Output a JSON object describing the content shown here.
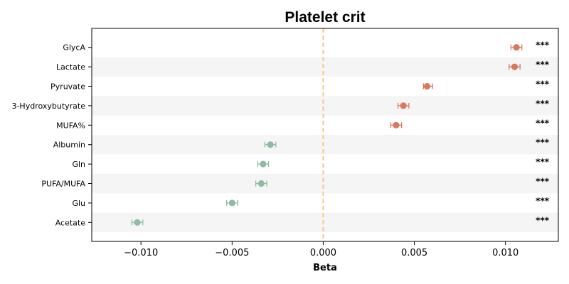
{
  "chart_data": {
    "type": "scatter",
    "title": "Platelet crit",
    "xlabel": "Beta",
    "ylabel": "",
    "xlim": [
      -0.0127,
      0.0129
    ],
    "xticks": [
      -0.01,
      -0.005,
      0.0,
      0.005,
      0.01
    ],
    "xtick_labels": [
      "−0.010",
      "−0.005",
      "0.000",
      "0.005",
      "0.010"
    ],
    "reference_line": 0.0,
    "colors": {
      "positive": "#d9785f",
      "negative": "#8fbba3",
      "reference": "#f5c27a",
      "stripe": "#f5f5f5"
    },
    "rows": [
      {
        "label": "GlycA",
        "beta": 0.0106,
        "lower": 0.0103,
        "upper": 0.0109,
        "sig": "***"
      },
      {
        "label": "Lactate",
        "beta": 0.0105,
        "lower": 0.0102,
        "upper": 0.0108,
        "sig": "***"
      },
      {
        "label": "Pyruvate",
        "beta": 0.0057,
        "lower": 0.0055,
        "upper": 0.006,
        "sig": "***"
      },
      {
        "label": "3-Hydroxybutyrate",
        "beta": 0.0044,
        "lower": 0.0041,
        "upper": 0.0047,
        "sig": "***"
      },
      {
        "label": "MUFA%",
        "beta": 0.004,
        "lower": 0.0037,
        "upper": 0.0043,
        "sig": "***"
      },
      {
        "label": "Albumin",
        "beta": -0.0029,
        "lower": -0.0032,
        "upper": -0.0026,
        "sig": "***"
      },
      {
        "label": "Gln",
        "beta": -0.0033,
        "lower": -0.0036,
        "upper": -0.003,
        "sig": "***"
      },
      {
        "label": "PUFA/MUFA",
        "beta": -0.0034,
        "lower": -0.0037,
        "upper": -0.0031,
        "sig": "***"
      },
      {
        "label": "Glu",
        "beta": -0.005,
        "lower": -0.0053,
        "upper": -0.0047,
        "sig": "***"
      },
      {
        "label": "Acetate",
        "beta": -0.0102,
        "lower": -0.0105,
        "upper": -0.0099,
        "sig": "***"
      }
    ]
  }
}
